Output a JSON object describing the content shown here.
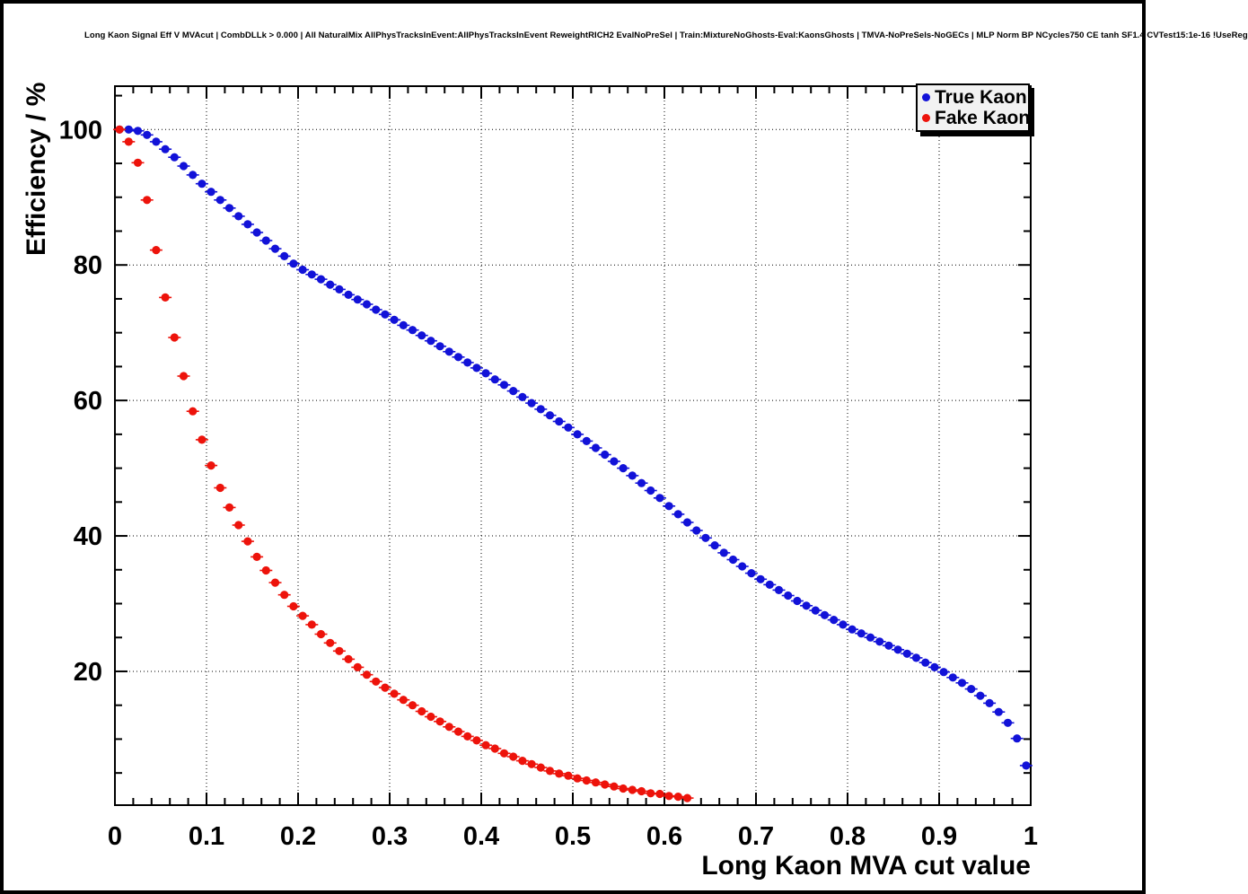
{
  "window": {
    "background": "#ffffff",
    "border_color": "#000000"
  },
  "legend": {
    "fill": "#f2f2f2",
    "border": "#000000",
    "shadow": "#000000",
    "position": "top-right"
  },
  "chart_data": {
    "type": "scatter",
    "title": "Long Kaon Signal Eff V MVAcut | CombDLLk > 0.000 | All NaturalMix AllPhysTracksInEvent:AllPhysTracksInEvent ReweightRICH2 EvalNoPreSel | Train:MixtureNoGhosts-Eval:KaonsGhosts | TMVA-NoPreSels-NoGECs | MLP Norm BP NCycles750 CE tanh SF1.4 CVTest15:1e-16 !UseReg",
    "xlabel": "Long Kaon MVA cut value",
    "ylabel": "Efficiency / %",
    "xlim": [
      0,
      1
    ],
    "ylim": [
      0.25,
      106.4
    ],
    "grid": true,
    "grid_style": "dotted",
    "x_major_ticks": [
      0,
      0.1,
      0.2,
      0.3,
      0.4,
      0.5,
      0.6,
      0.7,
      0.8,
      0.9,
      1
    ],
    "x_tick_labels": [
      "0",
      "0.1",
      "0.2",
      "0.3",
      "0.4",
      "0.5",
      "0.6",
      "0.7",
      "0.8",
      "0.9",
      "1"
    ],
    "x_minor_step": 0.02,
    "y_major_ticks": [
      20,
      40,
      60,
      80,
      100
    ],
    "y_tick_labels": [
      "20",
      "40",
      "60",
      "80",
      "100"
    ],
    "y_minor_step": 5,
    "marker": "filled-circle-with-x-error-bars",
    "series": [
      {
        "name": "True Kaon",
        "color": "#1212d8",
        "x": [
          0.005,
          0.015,
          0.025,
          0.035,
          0.045,
          0.055,
          0.065,
          0.075,
          0.085,
          0.095,
          0.105,
          0.115,
          0.125,
          0.135,
          0.145,
          0.155,
          0.165,
          0.175,
          0.185,
          0.195,
          0.205,
          0.215,
          0.225,
          0.235,
          0.245,
          0.255,
          0.265,
          0.275,
          0.285,
          0.295,
          0.305,
          0.315,
          0.325,
          0.335,
          0.345,
          0.355,
          0.365,
          0.375,
          0.385,
          0.395,
          0.405,
          0.415,
          0.425,
          0.435,
          0.445,
          0.455,
          0.465,
          0.475,
          0.485,
          0.495,
          0.505,
          0.515,
          0.525,
          0.535,
          0.545,
          0.555,
          0.565,
          0.575,
          0.585,
          0.595,
          0.605,
          0.615,
          0.625,
          0.635,
          0.645,
          0.655,
          0.665,
          0.675,
          0.685,
          0.695,
          0.705,
          0.715,
          0.725,
          0.735,
          0.745,
          0.755,
          0.765,
          0.775,
          0.785,
          0.795,
          0.805,
          0.815,
          0.825,
          0.835,
          0.845,
          0.855,
          0.865,
          0.875,
          0.885,
          0.895,
          0.905,
          0.915,
          0.925,
          0.935,
          0.945,
          0.955,
          0.965,
          0.975,
          0.985,
          0.995
        ],
        "y": [
          100,
          100,
          99.8,
          99.2,
          98.2,
          97.1,
          95.9,
          94.6,
          93.3,
          92.0,
          90.8,
          89.6,
          88.4,
          87.2,
          86.0,
          84.8,
          83.6,
          82.4,
          81.3,
          80.2,
          79.3,
          78.6,
          77.9,
          77.1,
          76.4,
          75.6,
          74.9,
          74.2,
          73.4,
          72.7,
          71.9,
          71.1,
          70.4,
          69.6,
          68.8,
          68.0,
          67.2,
          66.4,
          65.6,
          64.8,
          64.0,
          63.1,
          62.3,
          61.4,
          60.5,
          59.6,
          58.7,
          57.8,
          56.9,
          56.0,
          55.0,
          54.0,
          53.0,
          52.0,
          51.0,
          50.0,
          48.9,
          47.8,
          46.7,
          45.6,
          44.4,
          43.2,
          42.0,
          40.8,
          39.7,
          38.6,
          37.5,
          36.5,
          35.5,
          34.5,
          33.6,
          32.8,
          32.0,
          31.2,
          30.4,
          29.7,
          29.0,
          28.3,
          27.6,
          26.9,
          26.2,
          25.6,
          25.0,
          24.4,
          23.8,
          23.2,
          22.6,
          22.0,
          21.3,
          20.6,
          19.9,
          19.1,
          18.3,
          17.4,
          16.4,
          15.3,
          14.0,
          12.4,
          10.1,
          6.1
        ]
      },
      {
        "name": "Fake Kaon",
        "color": "#ed130b",
        "x": [
          0.005,
          0.015,
          0.025,
          0.035,
          0.045,
          0.055,
          0.065,
          0.075,
          0.085,
          0.095,
          0.105,
          0.115,
          0.125,
          0.135,
          0.145,
          0.155,
          0.165,
          0.175,
          0.185,
          0.195,
          0.205,
          0.215,
          0.225,
          0.235,
          0.245,
          0.255,
          0.265,
          0.275,
          0.285,
          0.295,
          0.305,
          0.315,
          0.325,
          0.335,
          0.345,
          0.355,
          0.365,
          0.375,
          0.385,
          0.395,
          0.405,
          0.415,
          0.425,
          0.435,
          0.445,
          0.455,
          0.465,
          0.475,
          0.485,
          0.495,
          0.505,
          0.515,
          0.525,
          0.535,
          0.545,
          0.555,
          0.565,
          0.575,
          0.585,
          0.595,
          0.605,
          0.615,
          0.625
        ],
        "y": [
          100,
          98.2,
          95.1,
          89.6,
          82.2,
          75.2,
          69.3,
          63.6,
          58.4,
          54.2,
          50.4,
          47.1,
          44.2,
          41.6,
          39.2,
          36.9,
          34.9,
          33.1,
          31.3,
          29.6,
          28.2,
          26.9,
          25.5,
          24.2,
          23.0,
          21.8,
          20.6,
          19.5,
          18.5,
          17.6,
          16.7,
          15.8,
          15.0,
          14.1,
          13.3,
          12.6,
          11.8,
          11.1,
          10.4,
          9.8,
          9.1,
          8.6,
          7.9,
          7.4,
          6.8,
          6.3,
          5.8,
          5.3,
          4.9,
          4.6,
          4.2,
          3.9,
          3.6,
          3.3,
          3.0,
          2.7,
          2.5,
          2.3,
          2.0,
          1.9,
          1.6,
          1.5,
          1.3
        ]
      }
    ]
  }
}
